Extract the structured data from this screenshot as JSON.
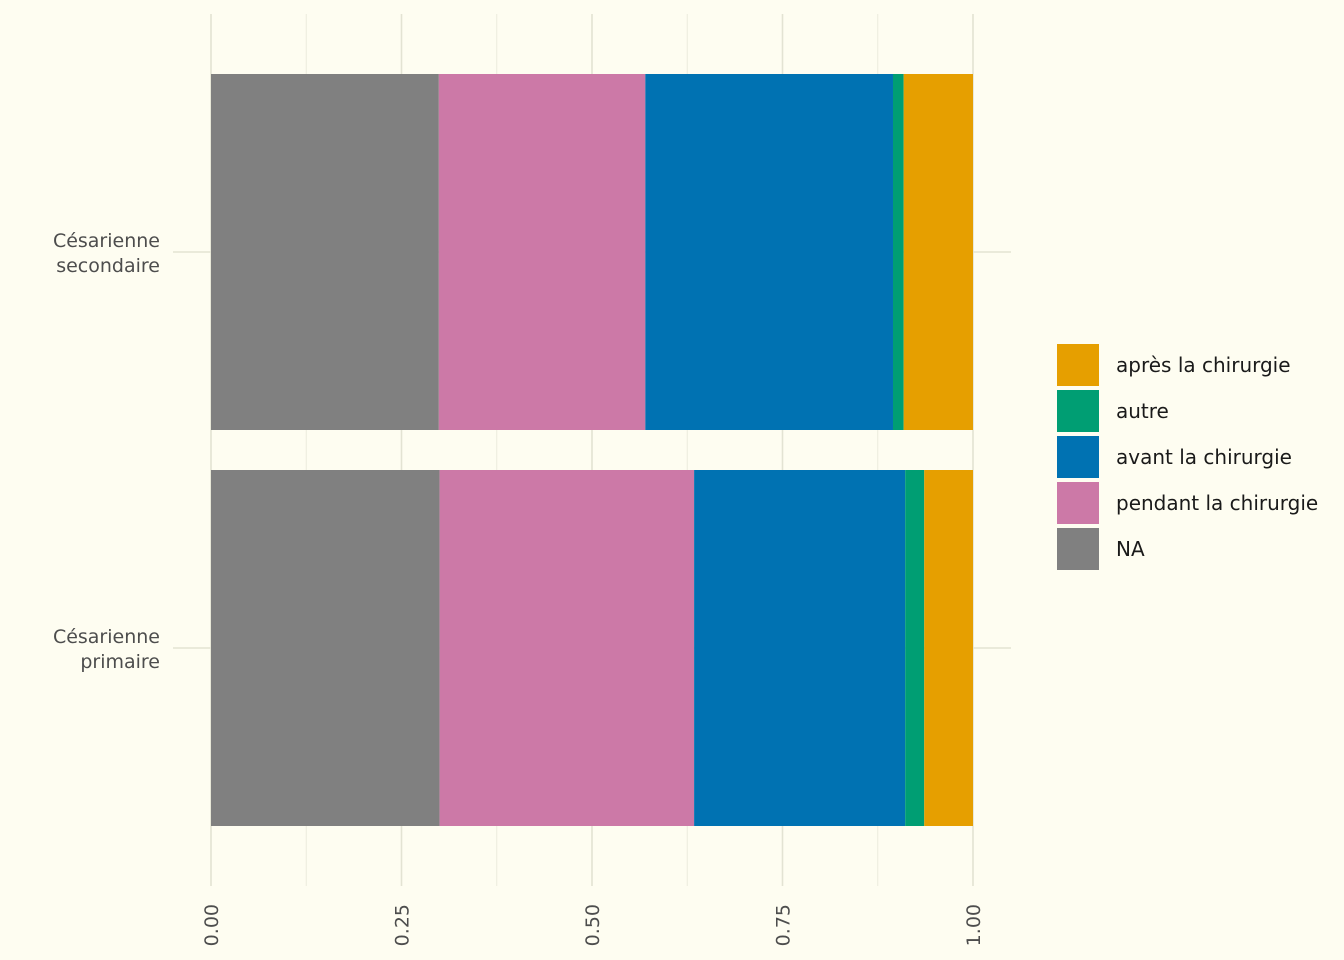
{
  "chart_data": {
    "type": "bar",
    "orientation": "horizontal",
    "stacked": true,
    "title": "",
    "xlabel": "",
    "ylabel": "",
    "xlim": [
      0,
      1
    ],
    "x_ticks": [
      "0.00",
      "0.25",
      "0.50",
      "0.75",
      "1.00"
    ],
    "grid": true,
    "legend_position": "right",
    "categories": [
      [
        "Césarienne",
        "secondaire"
      ],
      [
        "Césarienne",
        "primaire"
      ]
    ],
    "series": [
      {
        "name": "NA",
        "color": "#808080",
        "values": [
          0.299,
          0.3
        ]
      },
      {
        "name": "pendant la chirurgie",
        "color": "#CC79A7",
        "values": [
          0.271,
          0.334
        ]
      },
      {
        "name": "avant la chirurgie",
        "color": "#0072B2",
        "values": [
          0.325,
          0.277
        ]
      },
      {
        "name": "autre",
        "color": "#009E73",
        "values": [
          0.014,
          0.025
        ]
      },
      {
        "name": "après la chirurgie",
        "color": "#E69F00",
        "values": [
          0.091,
          0.064
        ]
      }
    ],
    "legend_order": [
      "après la chirurgie",
      "autre",
      "avant la chirurgie",
      "pendant la chirurgie",
      "NA"
    ]
  }
}
